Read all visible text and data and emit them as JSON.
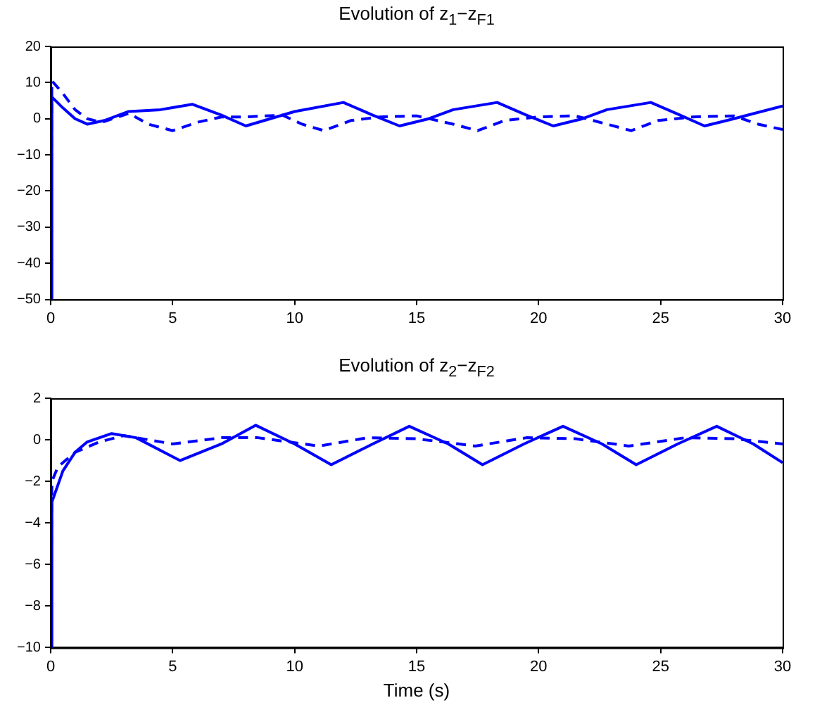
{
  "chart_data": [
    {
      "type": "line",
      "title": "Evolution of z$_{1}$−z$_{F1}$",
      "xlim": [
        0,
        30
      ],
      "xticks": [
        0,
        5,
        10,
        15,
        20,
        25,
        30
      ],
      "ylim": [
        -50,
        20
      ],
      "yticks": [
        {
          "value": -50,
          "label": "−50"
        },
        {
          "value": -40,
          "label": "−40"
        },
        {
          "value": -30,
          "label": "−30"
        },
        {
          "value": -20,
          "label": "−20"
        },
        {
          "value": -10,
          "label": "−10"
        },
        0,
        10,
        20
      ],
      "grid": false,
      "legend": false,
      "marker": "none",
      "series": [
        {
          "color": "#0000ff",
          "line_style": "solid",
          "x": [
            0,
            0.05,
            0.5,
            1,
            1.5,
            2.2,
            3.2,
            4.5,
            5.8,
            7,
            8,
            9,
            10,
            12,
            13.2,
            14.3,
            15.5,
            16.5,
            18.3,
            19.5,
            20.6,
            21.8,
            22.8,
            24.6,
            25.8,
            26.8,
            28,
            30
          ],
          "values": [
            -50,
            6,
            3,
            0,
            -1.5,
            -0.5,
            2,
            2.5,
            4,
            1,
            -2,
            0,
            2,
            4.5,
            1,
            -2,
            0,
            2.5,
            4.5,
            1,
            -2,
            0,
            2.5,
            4.5,
            1,
            -2,
            0,
            3.5
          ]
        },
        {
          "color": "#0000ff",
          "line_style": "dashed",
          "x": [
            0,
            0.05,
            0.5,
            1,
            1.5,
            2.1,
            3.2,
            4,
            5,
            6,
            7,
            8,
            9.5,
            10.3,
            11.2,
            12.3,
            13.5,
            15,
            16.5,
            17.5,
            18.6,
            20,
            21.5,
            22.8,
            23.8,
            24.9,
            26.3,
            28,
            29,
            30
          ],
          "values": [
            -50,
            10.5,
            7,
            2.5,
            0,
            -1,
            1.5,
            -1.5,
            -3.3,
            -1,
            0.5,
            0.5,
            1,
            -1.5,
            -3.3,
            -0.5,
            0.5,
            0.8,
            -1.5,
            -3.3,
            -0.5,
            0.5,
            0.8,
            -1.5,
            -3.3,
            -0.5,
            0.5,
            0.8,
            -1.5,
            -3
          ]
        }
      ]
    },
    {
      "type": "line",
      "title": "Evolution of z$_{2}$−z$_{F2}$",
      "xlabel": "Time (s)",
      "xlim": [
        0,
        30
      ],
      "xticks": [
        0,
        5,
        10,
        15,
        20,
        25,
        30
      ],
      "ylim": [
        -10,
        2
      ],
      "yticks": [
        {
          "value": -10,
          "label": "−10"
        },
        {
          "value": -8,
          "label": "−8"
        },
        {
          "value": -6,
          "label": "−6"
        },
        {
          "value": -4,
          "label": "−4"
        },
        {
          "value": -2,
          "label": "−2"
        },
        0,
        2
      ],
      "grid": false,
      "legend": false,
      "marker": "none",
      "series": [
        {
          "color": "#0000ff",
          "line_style": "solid",
          "x": [
            0,
            0.05,
            0.5,
            1,
            1.5,
            2.5,
            3.5,
            5.3,
            7,
            8.4,
            10,
            11.5,
            13.2,
            14.7,
            16.3,
            17.7,
            19.4,
            21,
            22.6,
            24,
            25.7,
            27.3,
            28.8,
            30
          ],
          "values": [
            -10,
            -3,
            -1.5,
            -0.6,
            -0.1,
            0.3,
            0.1,
            -1,
            -0.2,
            0.7,
            -0.2,
            -1.2,
            -0.2,
            0.65,
            -0.2,
            -1.2,
            -0.2,
            0.65,
            -0.2,
            -1.2,
            -0.2,
            0.65,
            -0.2,
            -1.1
          ]
        },
        {
          "color": "#0000ff",
          "line_style": "dashed",
          "x": [
            0,
            0.05,
            0.3,
            1,
            2,
            3,
            5,
            7,
            8.5,
            11,
            13,
            15,
            17.4,
            19.5,
            21.5,
            23.7,
            26,
            28,
            30
          ],
          "values": [
            -10,
            -2,
            -1.3,
            -0.6,
            -0.1,
            0.2,
            -0.2,
            0.1,
            0.1,
            -0.3,
            0.1,
            0.05,
            -0.3,
            0.1,
            0.05,
            -0.3,
            0.1,
            0.05,
            -0.2
          ]
        }
      ]
    }
  ]
}
